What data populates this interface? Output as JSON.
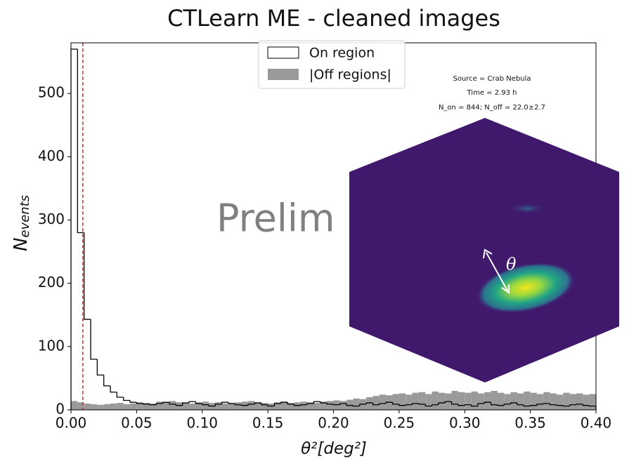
{
  "chart_data": {
    "type": "histogram",
    "title": "CTLearn ME - cleaned images",
    "xlabel": "θ²[deg²]",
    "ylabel": "N",
    "ylabel_sub": "events",
    "watermark": "Prelim",
    "inset_label": "θ",
    "annotations": [
      "Source = Crab Nebula",
      "Time = 2.93 h",
      "N_on = 844; N_off = 22.0±2.7"
    ],
    "threshold": 0.009,
    "threshold_color": "#e8262a",
    "legend": "upper center",
    "grid": false,
    "xlim": [
      0,
      0.4
    ],
    "ylim": [
      0,
      580
    ],
    "xticks": [
      {
        "value": 0,
        "label": "0.00"
      },
      {
        "value": 0.05,
        "label": "0.05"
      },
      {
        "value": 0.1,
        "label": "0.10"
      },
      {
        "value": 0.15,
        "label": "0.15"
      },
      {
        "value": 0.2,
        "label": "0.20"
      },
      {
        "value": 0.25,
        "label": "0.25"
      },
      {
        "value": 0.3,
        "label": "0.30"
      },
      {
        "value": 0.35,
        "label": "0.35"
      },
      {
        "value": 0.4,
        "label": "0.40"
      }
    ],
    "yticks": [
      0,
      100,
      200,
      300,
      400,
      500
    ],
    "bins": [
      0,
      0.005,
      0.01,
      0.015,
      0.02,
      0.025,
      0.03,
      0.035,
      0.04,
      0.045,
      0.05,
      0.055,
      0.06,
      0.065,
      0.07,
      0.075,
      0.08,
      0.085,
      0.09,
      0.095,
      0.1,
      0.105,
      0.11,
      0.115,
      0.12,
      0.125,
      0.13,
      0.135,
      0.14,
      0.145,
      0.15,
      0.155,
      0.16,
      0.165,
      0.17,
      0.175,
      0.18,
      0.185,
      0.19,
      0.195,
      0.2,
      0.205,
      0.21,
      0.215,
      0.22,
      0.225,
      0.23,
      0.235,
      0.24,
      0.245,
      0.25,
      0.255,
      0.26,
      0.265,
      0.27,
      0.275,
      0.28,
      0.285,
      0.29,
      0.295,
      0.3,
      0.305,
      0.31,
      0.315,
      0.32,
      0.325,
      0.33,
      0.335,
      0.34,
      0.345,
      0.35,
      0.355,
      0.36,
      0.365,
      0.37,
      0.375,
      0.38,
      0.385,
      0.39,
      0.395,
      0.4
    ],
    "series": [
      {
        "name": "On region",
        "color": "#000000",
        "style": "step",
        "values": [
          570,
          280,
          143,
          80,
          55,
          38,
          28,
          20,
          15,
          12,
          10,
          9,
          8,
          10,
          12,
          9,
          7,
          11,
          13,
          10,
          8,
          6,
          9,
          12,
          10,
          8,
          7,
          9,
          11,
          8,
          6,
          10,
          12,
          9,
          7,
          8,
          10,
          13,
          11,
          9,
          8,
          10,
          7,
          6,
          9,
          11,
          8,
          10,
          12,
          9,
          7,
          8,
          10,
          9,
          6,
          8,
          11,
          13,
          9,
          7,
          8,
          6,
          10,
          12,
          8,
          7,
          9,
          11,
          8,
          6,
          7,
          9,
          10,
          8,
          7,
          6,
          8,
          9,
          7,
          6
        ]
      },
      {
        "name": "|Off regions|",
        "color": "#9a9a9a",
        "style": "filled",
        "values": [
          14,
          12,
          10,
          9,
          8,
          9,
          10,
          11,
          9,
          10,
          12,
          11,
          10,
          13,
          12,
          14,
          12,
          11,
          10,
          12,
          13,
          11,
          12,
          10,
          11,
          12,
          13,
          14,
          12,
          11,
          10,
          12,
          13,
          11,
          12,
          13,
          12,
          11,
          13,
          14,
          15,
          14,
          16,
          18,
          17,
          20,
          22,
          24,
          23,
          25,
          26,
          24,
          27,
          28,
          25,
          29,
          27,
          26,
          30,
          28,
          27,
          29,
          26,
          28,
          30,
          27,
          25,
          28,
          26,
          29,
          27,
          25,
          28,
          26,
          24,
          27,
          25,
          26,
          24,
          25
        ]
      }
    ]
  }
}
